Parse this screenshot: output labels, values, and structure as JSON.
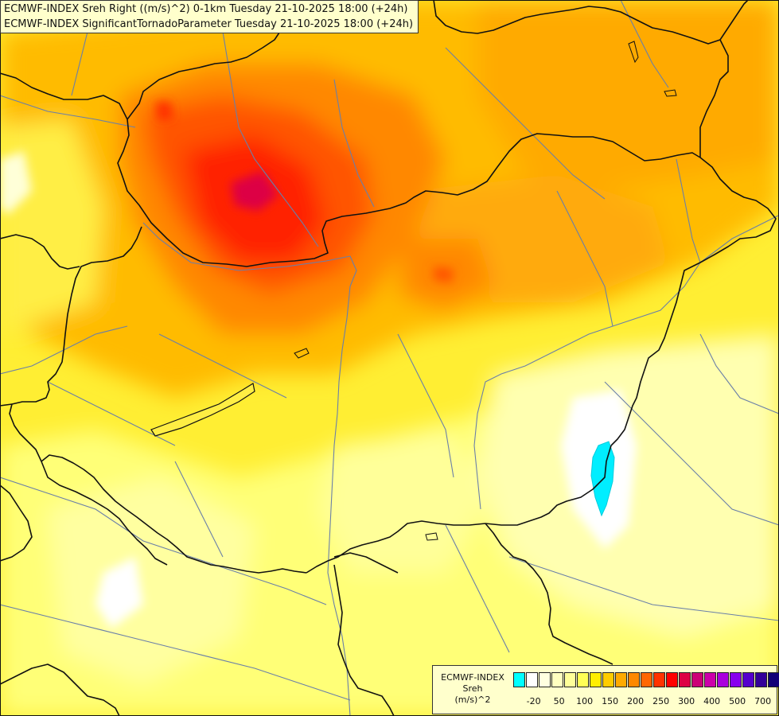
{
  "title": {
    "line1": "ECMWF-INDEX Sreh Right ((m/s)^2) 0-1km Tuesday 21-10-2025 18:00 (+24h)",
    "line2": "ECMWF-INDEX SignificantTornadoParameter Tuesday 21-10-2025 18:00 (+24h)"
  },
  "legend": {
    "line1": "ECMWF-INDEX",
    "line2": "Sreh",
    "line3": "(m/s)^2",
    "colors": [
      "#00ffff",
      "#ffffff",
      "#ffffe0",
      "#ffffc0",
      "#ffff99",
      "#ffff55",
      "#ffee00",
      "#ffcc00",
      "#ffaa00",
      "#ff8800",
      "#ff6600",
      "#ff3300",
      "#ff0000",
      "#dd0044",
      "#cc0077",
      "#cc00aa",
      "#aa00dd",
      "#8800ee",
      "#5500cc",
      "#330099",
      "#110077"
    ],
    "ticks": [
      "-20",
      "50",
      "100",
      "150",
      "200",
      "250",
      "300",
      "400",
      "500",
      "700"
    ]
  },
  "colors": {
    "background": "#ffee55",
    "border": "#111111",
    "river": "#6a7fa8"
  }
}
